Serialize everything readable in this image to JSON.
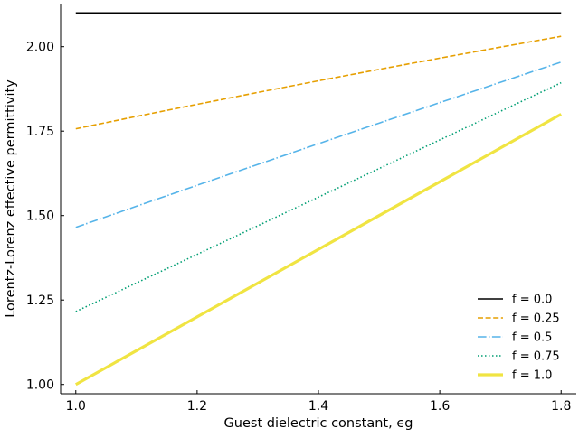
{
  "chart_data": {
    "type": "line",
    "title": "",
    "xlabel": "Guest dielectric constant, ϵg",
    "ylabel": "Lorentz-Lorenz effective permittivity",
    "xlim": [
      0.975,
      1.825
    ],
    "ylim": [
      0.9725,
      2.1275
    ],
    "xticks": [
      1.0,
      1.2,
      1.4,
      1.6,
      1.8
    ],
    "xtick_labels": [
      "1.0",
      "1.2",
      "1.4",
      "1.6",
      "1.8"
    ],
    "yticks": [
      1.0,
      1.25,
      1.5,
      1.75,
      2.0
    ],
    "ytick_labels": [
      "1.00",
      "1.25",
      "1.50",
      "1.75",
      "2.00"
    ],
    "grid": false,
    "legend_position": "lower-right",
    "x": [
      1.0,
      1.1,
      1.2,
      1.3,
      1.4,
      1.5,
      1.6,
      1.7,
      1.8
    ],
    "series": [
      {
        "name": "f = 0.0",
        "color": "#000000",
        "style": "solid",
        "width": "thin",
        "values": [
          2.1,
          2.1,
          2.1,
          2.1,
          2.1,
          2.1,
          2.1,
          2.1,
          2.1
        ]
      },
      {
        "name": "f = 0.25",
        "color": "#E69F00",
        "style": "dashed",
        "width": "thin",
        "values": [
          1.7569,
          1.7935,
          1.8293,
          1.8645,
          1.899,
          1.9328,
          1.9661,
          1.9987,
          2.0307
        ]
      },
      {
        "name": "f = 0.5",
        "color": "#56B4E9",
        "style": "dashdot",
        "width": "thin",
        "values": [
          1.4651,
          1.5275,
          1.5897,
          1.6513,
          1.7127,
          1.7737,
          1.8343,
          1.8946,
          1.9545
        ]
      },
      {
        "name": "f = 0.75",
        "color": "#009E73",
        "style": "dotted",
        "width": "thin",
        "values": [
          1.2159,
          1.3005,
          1.3851,
          1.4698,
          1.5545,
          1.6392,
          1.7239,
          1.8086,
          1.8932
        ]
      },
      {
        "name": "f = 1.0",
        "color": "#F0E442",
        "style": "solid",
        "width": "thick",
        "values": [
          1.0,
          1.1,
          1.2,
          1.3,
          1.4,
          1.5,
          1.6,
          1.7,
          1.8
        ]
      }
    ]
  }
}
